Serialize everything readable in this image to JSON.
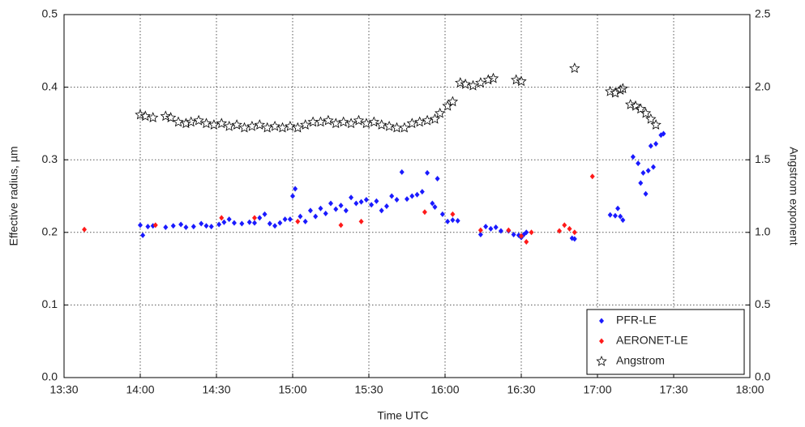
{
  "chart_data": {
    "type": "scatter",
    "xlabel": "Time UTC",
    "ylabel": "Effective radius, µm",
    "y2label": "Angstrom exponent",
    "xlim": [
      810,
      1080
    ],
    "xticks": [
      {
        "value": 810,
        "label": "13:30"
      },
      {
        "value": 840,
        "label": "14:00"
      },
      {
        "value": 870,
        "label": "14:30"
      },
      {
        "value": 900,
        "label": "15:00"
      },
      {
        "value": 930,
        "label": "15:30"
      },
      {
        "value": 960,
        "label": "16:00"
      },
      {
        "value": 990,
        "label": "16:30"
      },
      {
        "value": 1020,
        "label": "17:00"
      },
      {
        "value": 1050,
        "label": "17:30"
      },
      {
        "value": 1080,
        "label": "18:00"
      }
    ],
    "ylim": [
      0,
      0.5
    ],
    "yticks": [
      {
        "value": 0,
        "label": "0.0"
      },
      0.1,
      0.2,
      0.3,
      0.4,
      0.5
    ],
    "y2lim": [
      0,
      2.5
    ],
    "y2ticks": [
      {
        "value": 0,
        "label": "0.0"
      },
      0.5,
      {
        "value": 1,
        "label": "1.0"
      },
      1.5,
      {
        "value": 2,
        "label": "2.0"
      },
      2.5
    ],
    "grid": true,
    "legend": "lower right",
    "series": [
      {
        "name": "PFR-LE",
        "color": "#1a1aff",
        "marker": "diamond",
        "x": [
          840,
          841,
          843,
          845,
          850,
          853,
          856,
          858,
          861,
          864,
          866,
          868,
          871,
          873,
          875,
          877,
          880,
          883,
          885,
          887,
          889,
          891,
          893,
          895,
          897,
          899,
          900,
          901,
          903,
          905,
          907,
          909,
          911,
          913,
          915,
          917,
          919,
          921,
          923,
          925,
          927,
          929,
          931,
          933,
          935,
          937,
          939,
          941,
          943,
          945,
          947,
          949,
          951,
          953,
          955,
          956,
          957,
          959,
          961,
          963,
          965,
          974,
          976,
          978,
          980,
          982,
          985,
          987,
          989,
          990,
          991,
          992,
          1010,
          1011,
          1025,
          1027,
          1028,
          1029,
          1030,
          1034,
          1036,
          1037,
          1038,
          1039,
          1040,
          1041,
          1042,
          1043,
          1045,
          1046
        ],
        "values": [
          0.21,
          0.196,
          0.208,
          0.209,
          0.207,
          0.209,
          0.211,
          0.207,
          0.208,
          0.212,
          0.209,
          0.208,
          0.211,
          0.214,
          0.218,
          0.213,
          0.212,
          0.214,
          0.213,
          0.22,
          0.225,
          0.212,
          0.209,
          0.213,
          0.218,
          0.218,
          0.25,
          0.26,
          0.222,
          0.215,
          0.23,
          0.222,
          0.233,
          0.226,
          0.24,
          0.232,
          0.237,
          0.23,
          0.248,
          0.24,
          0.242,
          0.245,
          0.238,
          0.243,
          0.23,
          0.236,
          0.25,
          0.245,
          0.283,
          0.246,
          0.25,
          0.252,
          0.256,
          0.282,
          0.24,
          0.235,
          0.274,
          0.225,
          0.215,
          0.217,
          0.216,
          0.197,
          0.208,
          0.205,
          0.207,
          0.202,
          0.202,
          0.197,
          0.196,
          0.193,
          0.197,
          0.2,
          0.192,
          0.191,
          0.224,
          0.223,
          0.233,
          0.222,
          0.217,
          0.304,
          0.295,
          0.268,
          0.282,
          0.253,
          0.285,
          0.319,
          0.29,
          0.322,
          0.334,
          0.336
        ]
      },
      {
        "name": "AERONET-LE",
        "color": "#ff1a1a",
        "marker": "diamond",
        "x": [
          818,
          846,
          872,
          885,
          902,
          919,
          927,
          952,
          963,
          974,
          985,
          990,
          992,
          994,
          1005,
          1007,
          1009,
          1011,
          1018
        ],
        "values": [
          0.204,
          0.21,
          0.22,
          0.22,
          0.215,
          0.21,
          0.215,
          0.228,
          0.225,
          0.203,
          0.203,
          0.195,
          0.187,
          0.2,
          0.202,
          0.21,
          0.205,
          0.2,
          0.277
        ]
      },
      {
        "name": "Angstrom",
        "color": "#000000",
        "marker": "star",
        "axis": "y2",
        "x": [
          840,
          842,
          845,
          850,
          852,
          855,
          858,
          860,
          863,
          866,
          869,
          872,
          875,
          878,
          881,
          884,
          887,
          890,
          893,
          896,
          899,
          902,
          905,
          908,
          911,
          914,
          917,
          920,
          923,
          926,
          929,
          932,
          935,
          938,
          941,
          944,
          947,
          950,
          953,
          956,
          958,
          961,
          963,
          966,
          968,
          971,
          974,
          977,
          979,
          988,
          990,
          1011,
          1025,
          1027,
          1029,
          1030,
          1033,
          1035,
          1037,
          1039,
          1041,
          1043
        ],
        "values": [
          1.81,
          1.8,
          1.79,
          1.8,
          1.79,
          1.76,
          1.75,
          1.76,
          1.77,
          1.75,
          1.74,
          1.75,
          1.73,
          1.74,
          1.72,
          1.73,
          1.74,
          1.72,
          1.73,
          1.72,
          1.73,
          1.72,
          1.74,
          1.76,
          1.76,
          1.77,
          1.75,
          1.76,
          1.75,
          1.77,
          1.75,
          1.76,
          1.74,
          1.73,
          1.72,
          1.72,
          1.75,
          1.76,
          1.77,
          1.78,
          1.82,
          1.87,
          1.9,
          2.03,
          2.02,
          2.01,
          2.03,
          2.05,
          2.06,
          2.05,
          2.04,
          2.13,
          1.97,
          1.96,
          1.98,
          1.99,
          1.88,
          1.87,
          1.85,
          1.82,
          1.78,
          1.74
        ]
      }
    ]
  }
}
